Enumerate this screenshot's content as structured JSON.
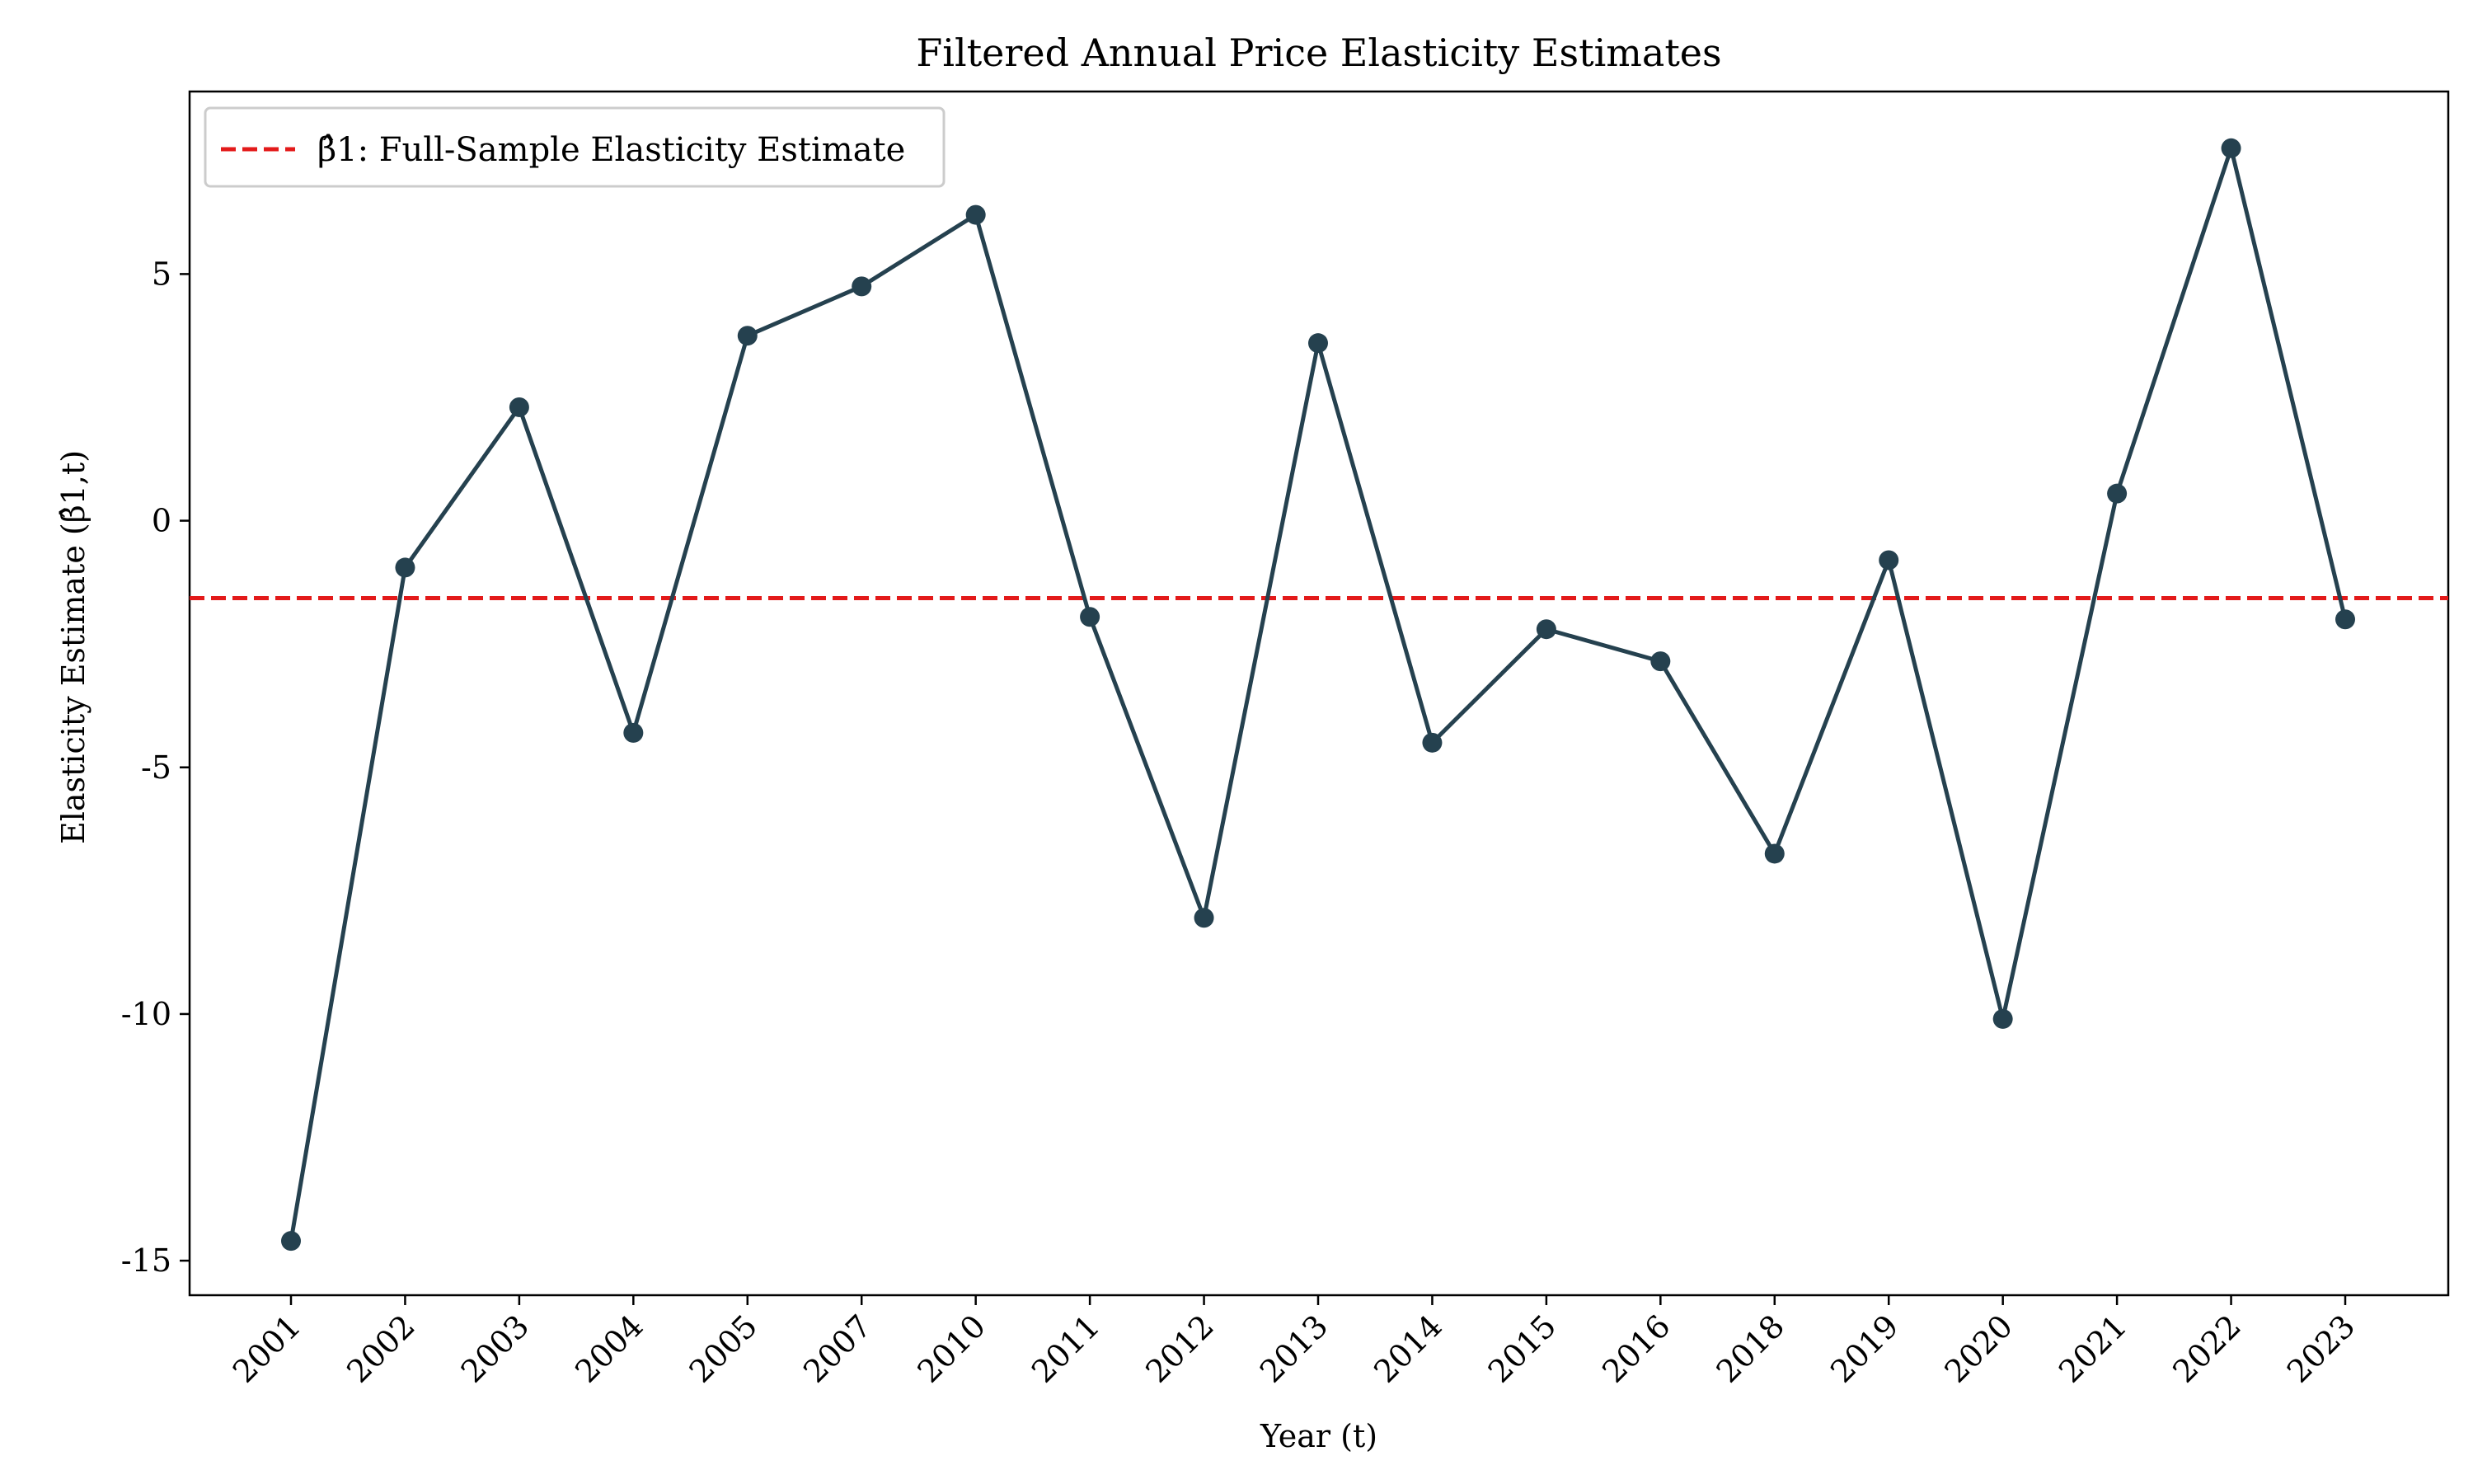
{
  "chart_data": {
    "type": "line",
    "title": "Filtered Annual Price Elasticity Estimates",
    "xlabel": "Year (t)",
    "ylabel": "Elasticity Estimate (β̂1,t)",
    "ylim": [
      -15.7,
      8.7
    ],
    "yticks": [
      5,
      0,
      -5,
      -10,
      -15
    ],
    "ytick_labels": [
      "5",
      "0",
      "-5",
      "-10",
      "-15"
    ],
    "categories": [
      "2001",
      "2002",
      "2003",
      "2004",
      "2005",
      "2007",
      "2010",
      "2011",
      "2012",
      "2013",
      "2014",
      "2015",
      "2016",
      "2018",
      "2019",
      "2020",
      "2021",
      "2022",
      "2023"
    ],
    "series": [
      {
        "values": [
          -14.6,
          -0.95,
          2.3,
          -4.3,
          3.75,
          4.75,
          6.2,
          -1.95,
          -8.05,
          3.6,
          -4.5,
          -2.2,
          -2.85,
          -6.75,
          -0.8,
          -10.1,
          0.55,
          7.55,
          -2.0
        ],
        "color": "#25414f",
        "marker": "circle"
      }
    ],
    "reference_line": {
      "value": -1.57,
      "color": "#e31a1a",
      "style": "dashed",
      "legend_label": "β̂1: Full-Sample Elasticity Estimate"
    },
    "grid": false,
    "legend_position": "top-left"
  }
}
